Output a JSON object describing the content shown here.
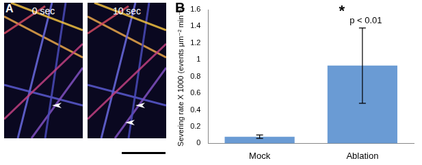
{
  "panels": {
    "A": {
      "label": "A",
      "frames": [
        "0 sec",
        "10 sec"
      ]
    },
    "B": {
      "label": "B"
    }
  },
  "chart_data": {
    "type": "bar",
    "categories": [
      "Mock",
      "Ablation"
    ],
    "values": [
      0.08,
      0.93
    ],
    "errors": [
      0.02,
      0.45
    ],
    "color": "#6a9bd4",
    "y_label": "Severing rate X 1000 (events μm⁻² min⁻¹)",
    "annotations": [
      "*",
      "p < 0.01"
    ],
    "ylim": [
      0,
      1.6
    ],
    "yticks": [
      0,
      0.2,
      0.4,
      0.6,
      0.8,
      1,
      1.2,
      1.4,
      1.6
    ],
    "grid": false
  }
}
